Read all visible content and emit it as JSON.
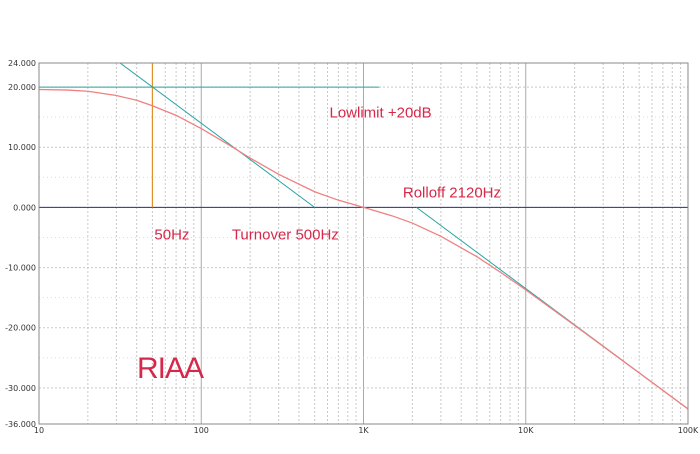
{
  "chart_data": {
    "type": "line",
    "title": "RIAA",
    "xscale": "log",
    "xlim": [
      10,
      100000
    ],
    "ylim": [
      -36,
      24
    ],
    "x_ticks": [
      {
        "value": 10,
        "label": "10"
      },
      {
        "value": 100,
        "label": "100"
      },
      {
        "value": 1000,
        "label": "1K"
      },
      {
        "value": 10000,
        "label": "10K"
      },
      {
        "value": 100000,
        "label": "100K"
      }
    ],
    "y_ticks": [
      {
        "value": 24,
        "label": "24.000"
      },
      {
        "value": 20,
        "label": "20.000"
      },
      {
        "value": 10,
        "label": "10.000"
      },
      {
        "value": 0,
        "label": "0.000"
      },
      {
        "value": -10,
        "label": "-10.000"
      },
      {
        "value": -20,
        "label": "-20.000"
      },
      {
        "value": -30,
        "label": "-30.000"
      },
      {
        "value": -36,
        "label": "-36.000"
      }
    ],
    "grid": true,
    "series": [
      {
        "color": "#f08080",
        "x": [
          10,
          15,
          20,
          30,
          40,
          50,
          70,
          100,
          150,
          200,
          300,
          500,
          700,
          1000,
          1500,
          2000,
          3000,
          5000,
          7000,
          10000,
          20000,
          50000,
          100000
        ],
        "y": [
          19.6,
          19.5,
          19.3,
          18.6,
          17.8,
          16.9,
          15.3,
          13.1,
          10.3,
          8.2,
          5.5,
          2.6,
          1.2,
          0.0,
          -1.4,
          -2.6,
          -4.8,
          -8.2,
          -10.8,
          -13.7,
          -19.6,
          -27.5,
          -33.5
        ],
        "label": ""
      }
    ],
    "asymptotes": [
      {
        "color": "#2aa3a3",
        "points": [
          [
            10,
            20
          ],
          [
            1250,
            20
          ]
        ]
      },
      {
        "color": "#2aa3a3",
        "points": [
          [
            31.6,
            24
          ],
          [
            500,
            0
          ]
        ]
      },
      {
        "color": "#2aa3a3",
        "points": [
          [
            2120,
            0
          ],
          [
            100000,
            -33.5
          ]
        ]
      }
    ],
    "reference_lines": [
      {
        "orientation": "horizontal",
        "value": 0,
        "color": "#1f2f9c"
      },
      {
        "orientation": "vertical",
        "value": 50,
        "y_from": 0,
        "y_to": 24,
        "color": "#e0922a"
      }
    ],
    "annotations": [
      {
        "text": "Lowlimit +20dB",
        "x": 600,
        "y": 15.8
      },
      {
        "text": "Rolloff 2120Hz",
        "x": 1700,
        "y": 2.5
      },
      {
        "text": "50Hz",
        "x": 50,
        "y": -4.5
      },
      {
        "text": "Turnover 500Hz",
        "x": 150,
        "y": -4.5
      }
    ]
  }
}
